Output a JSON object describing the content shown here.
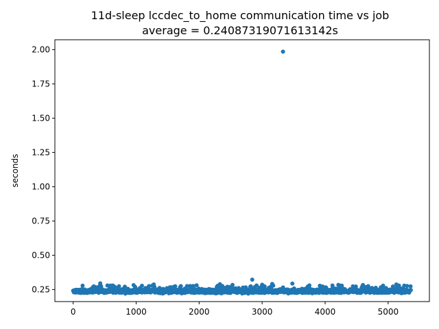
{
  "chart_data": {
    "type": "scatter",
    "title": "11d-sleep lccdec_to_home communication time vs job",
    "subtitle": "average = 0.24087319071613142s",
    "xlabel": "",
    "ylabel": "seconds",
    "xlim": [
      -290,
      5655
    ],
    "ylim": [
      0.162,
      2.072
    ],
    "xticks": [
      0,
      1000,
      2000,
      3000,
      4000,
      5000
    ],
    "yticks": [
      0.25,
      0.5,
      0.75,
      1.0,
      1.25,
      1.5,
      1.75,
      2.0
    ],
    "xtick_labels": [
      "0",
      "1000",
      "2000",
      "3000",
      "4000",
      "5000"
    ],
    "ytick_labels": [
      "0.25",
      "0.50",
      "0.75",
      "1.00",
      "1.25",
      "1.50",
      "1.75",
      "2.00"
    ],
    "grid": false,
    "legend": "none",
    "series": [
      {
        "color": "#1f77b4",
        "n_points": 5362,
        "baseline": 0.24,
        "spread": [
          0.22,
          0.29
        ],
        "points": [
          [
            3331,
            1.985
          ],
          [
            2843,
            0.322
          ],
          [
            430,
            0.295
          ],
          [
            3480,
            0.293
          ],
          [
            3160,
            0.291
          ],
          [
            2330,
            0.289
          ],
          [
            1280,
            0.287
          ],
          [
            5130,
            0.287
          ],
          [
            3000,
            0.285
          ],
          [
            4210,
            0.284
          ],
          [
            2530,
            0.284
          ],
          [
            4600,
            0.283
          ],
          [
            960,
            0.282
          ],
          [
            1960,
            0.281
          ],
          [
            3750,
            0.28
          ],
          [
            150,
            0.278
          ],
          [
            4920,
            0.278
          ],
          [
            5300,
            0.276
          ],
          [
            1710,
            0.275
          ],
          [
            620,
            0.274
          ]
        ]
      }
    ]
  }
}
